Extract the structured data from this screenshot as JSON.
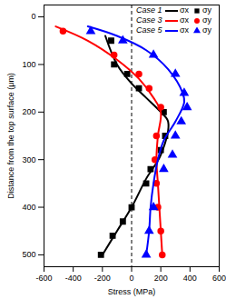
{
  "chart_data": {
    "type": "line",
    "x_label": "Stress (MPa)",
    "y_label": "Distance from the top surface (μm)",
    "xlim": [
      -600,
      600
    ],
    "xticks": [
      -600,
      -400,
      -200,
      0,
      200,
      400,
      600
    ],
    "ylim": [
      525,
      -25
    ],
    "yticks": [
      0,
      100,
      200,
      300,
      400,
      500
    ],
    "grid": false,
    "legend": "top-right",
    "zero_line": {
      "x": 0,
      "line_style": "dashed"
    },
    "series": [
      {
        "case": "Case 1",
        "name": "σx",
        "type": "line",
        "color": "#000000",
        "line_style": "solid",
        "x": [
          -180,
          -100,
          0,
          100,
          200,
          250,
          200,
          100,
          0,
          -100,
          -200
        ],
        "y": [
          40,
          100,
          140,
          170,
          200,
          220,
          290,
          340,
          400,
          450,
          500
        ]
      },
      {
        "case": "Case 1",
        "name": "σy",
        "type": "scatter",
        "color": "#000000",
        "marker": "square",
        "x": [
          -140,
          -120,
          -30,
          50,
          220,
          230,
          200,
          130,
          100,
          0,
          -60,
          -130,
          -210
        ],
        "y": [
          50,
          100,
          120,
          150,
          200,
          250,
          280,
          320,
          350,
          400,
          430,
          460,
          500
        ]
      },
      {
        "case": "Case 3",
        "name": "σx",
        "type": "line",
        "color": "#ff0000",
        "line_style": "solid",
        "x": [
          -520,
          -300,
          -100,
          50,
          150,
          200,
          180,
          170,
          180,
          190,
          200,
          210
        ],
        "y": [
          20,
          50,
          90,
          130,
          170,
          200,
          250,
          300,
          350,
          400,
          450,
          500
        ]
      },
      {
        "case": "Case 3",
        "name": "σy",
        "type": "scatter",
        "color": "#ff0000",
        "marker": "circle",
        "x": [
          -470,
          -120,
          50,
          120,
          200,
          170,
          160,
          170,
          180,
          200,
          210
        ],
        "y": [
          30,
          80,
          120,
          150,
          190,
          250,
          300,
          350,
          400,
          450,
          500
        ]
      },
      {
        "case": "Case 5",
        "name": "σx",
        "type": "line",
        "color": "#0000ff",
        "line_style": "solid",
        "x": [
          -300,
          -100,
          100,
          250,
          350,
          360,
          300,
          220,
          180,
          150,
          130,
          120,
          100
        ],
        "y": [
          20,
          40,
          70,
          110,
          160,
          180,
          220,
          260,
          300,
          350,
          400,
          450,
          500
        ]
      },
      {
        "case": "Case 5",
        "name": "σy",
        "type": "scatter",
        "color": "#0000ff",
        "marker": "triangle",
        "x": [
          -280,
          -60,
          150,
          300,
          360,
          380,
          340,
          300,
          280,
          220,
          150,
          120,
          100
        ],
        "y": [
          30,
          50,
          80,
          120,
          160,
          190,
          220,
          250,
          290,
          320,
          400,
          450,
          500
        ]
      }
    ]
  }
}
